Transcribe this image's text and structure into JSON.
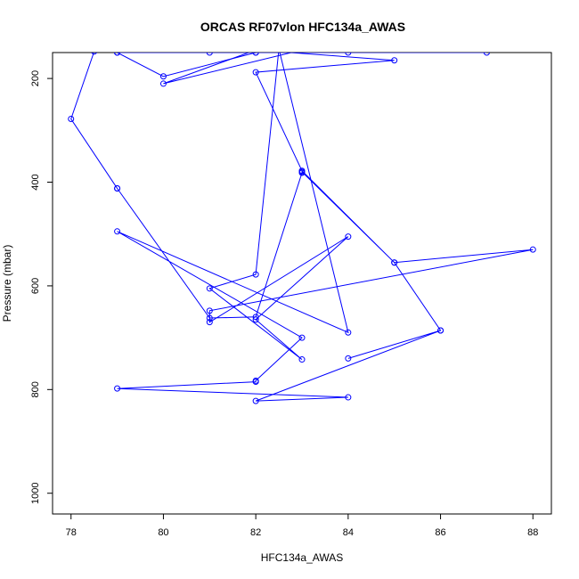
{
  "chart_data": {
    "type": "line",
    "title": "ORCAS RF07vlon HFC134a_AWAS",
    "xlabel": "HFC134a_AWAS",
    "ylabel": "Pressure (mbar)",
    "xlim": [
      77.6,
      88.4
    ],
    "ylim": [
      1040,
      150
    ],
    "y_reversed": true,
    "xticks": [
      78,
      80,
      82,
      84,
      86,
      88
    ],
    "yticks": [
      200,
      400,
      600,
      800,
      1000
    ],
    "grid": false,
    "legend": "none",
    "color": "#0000ff",
    "series": [
      {
        "x": [
          83,
          80,
          82,
          85,
          82,
          83,
          85,
          88,
          81,
          81,
          84,
          82,
          83,
          81,
          82,
          82.5,
          84,
          79,
          83,
          82,
          82,
          79,
          84,
          82,
          86,
          84,
          86,
          85,
          83,
          83,
          82,
          81,
          79,
          79,
          78,
          78.5
        ],
        "y": [
          145,
          210,
          145,
          165,
          188,
          378,
          555,
          530,
          648,
          670,
          505,
          665,
          742,
          605,
          578,
          143,
          690,
          495,
          700,
          783,
          785,
          798,
          815,
          822,
          686,
          740,
          686,
          555,
          380,
          382,
          660,
          662,
          412,
          412,
          278,
          148
        ]
      },
      {
        "x": [
          79,
          80,
          82
        ],
        "y": [
          150,
          196,
          150
        ]
      },
      {
        "x": [
          79,
          81,
          84,
          87
        ],
        "y": [
          150,
          150,
          150,
          150
        ]
      },
      {
        "x": [
          82
        ],
        "y": [
          150
        ]
      }
    ]
  }
}
